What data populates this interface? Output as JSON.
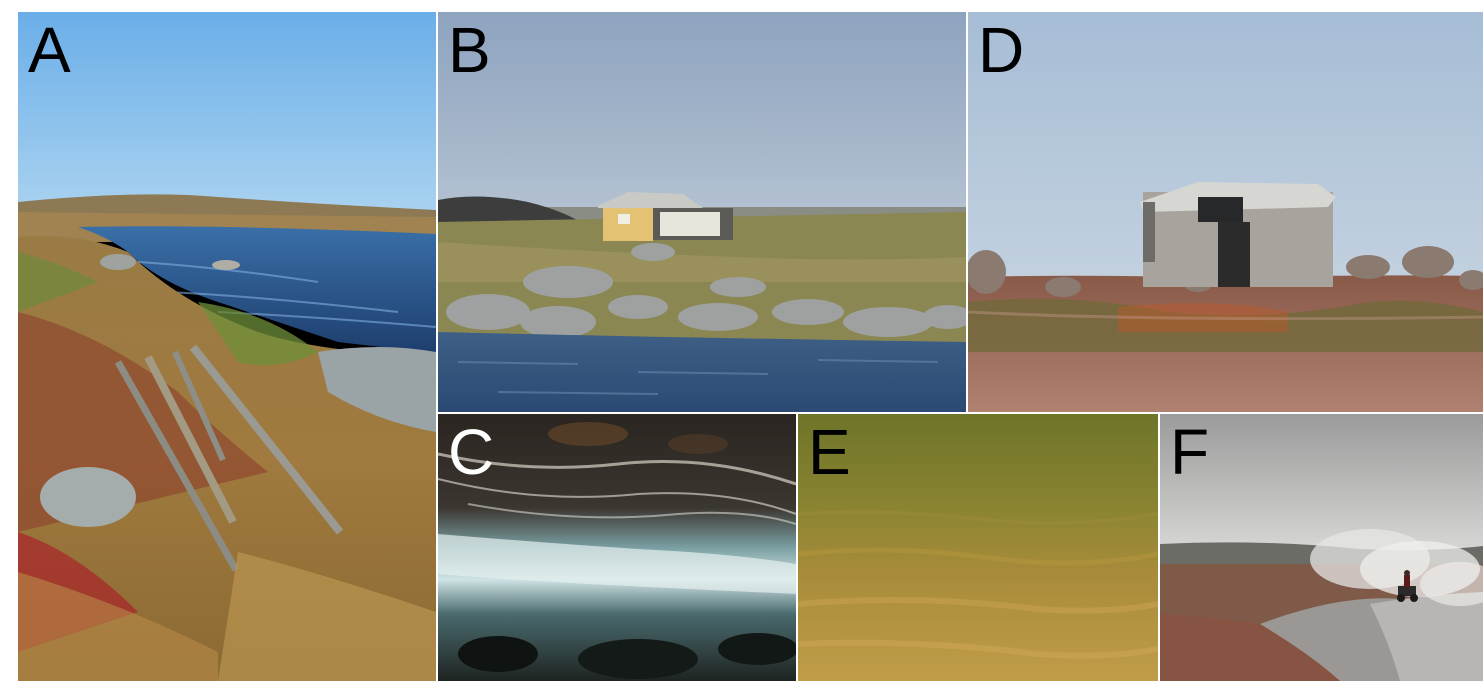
{
  "figure": {
    "panels": [
      {
        "id": "A",
        "label": "A",
        "scene": "river-tundra-with-metal-poles",
        "label_color": "#000000"
      },
      {
        "id": "B",
        "label": "B",
        "scene": "yellow-cabin-rocky-shore",
        "label_color": "#000000"
      },
      {
        "id": "C",
        "label": "C",
        "scene": "underwater-rapids",
        "label_color": "#ffffff"
      },
      {
        "id": "D",
        "label": "D",
        "scene": "concrete-hut-tundra",
        "label_color": "#000000"
      },
      {
        "id": "E",
        "label": "E",
        "scene": "murky-green-underwater",
        "label_color": "#000000"
      },
      {
        "id": "F",
        "label": "F",
        "scene": "atv-on-gravel-road-with-dust",
        "label_color": "#000000"
      }
    ]
  }
}
